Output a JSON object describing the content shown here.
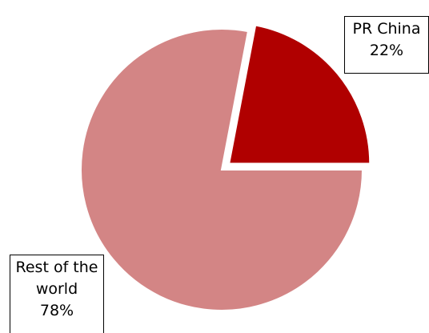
{
  "chart_data": {
    "type": "pie",
    "categories": [
      "PR China",
      "Rest of the world"
    ],
    "values": [
      22,
      78
    ],
    "value_labels": [
      "22%",
      "78%"
    ],
    "colors": [
      "#b00000",
      "#d38585"
    ]
  }
}
